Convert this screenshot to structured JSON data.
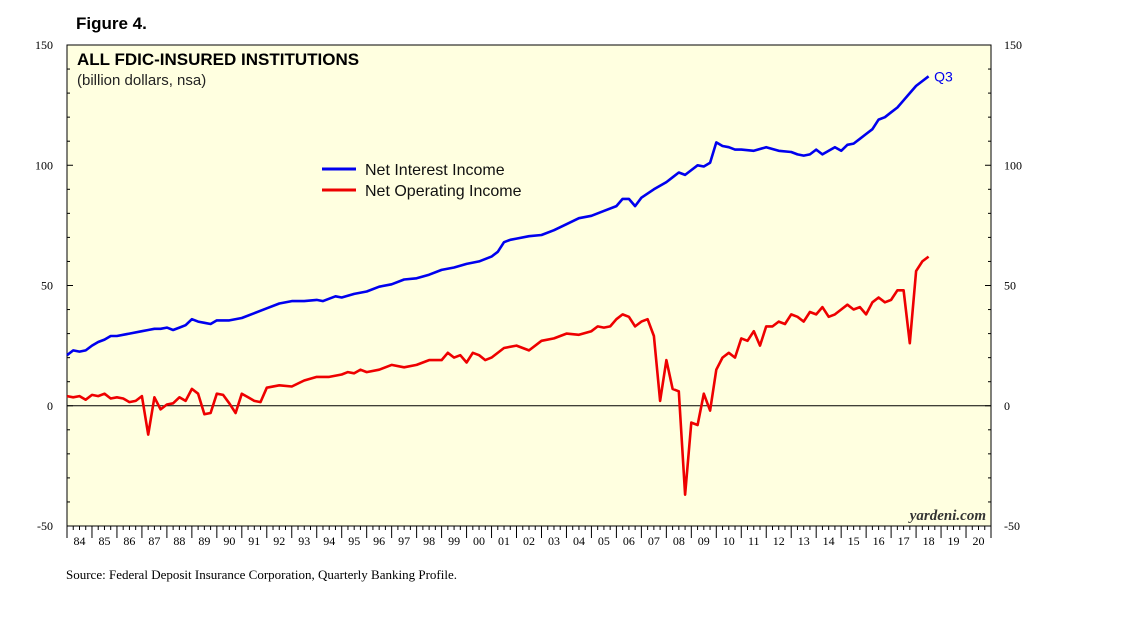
{
  "figure_label": "Figure 4.",
  "source": "Source: Federal Deposit Insurance Corporation, Quarterly Banking Profile.",
  "watermark": "yardeni.com",
  "colors": {
    "plot_bg": "#ffffe0",
    "series1": "#0000ee",
    "series2": "#ee0000",
    "zero_line": "#000000"
  },
  "chart_data": {
    "type": "line",
    "title": "ALL FDIC-INSURED INSTITUTIONS",
    "subtitle": "(billion dollars, nsa)",
    "ylim": [
      -50,
      150
    ],
    "yticks": [
      -50,
      0,
      50,
      100,
      150
    ],
    "ytick_labels": [
      "-50",
      "0",
      "50",
      "100",
      "150"
    ],
    "xlim": [
      1984,
      2021
    ],
    "x_tick_labels": [
      "84",
      "85",
      "86",
      "87",
      "88",
      "89",
      "90",
      "91",
      "92",
      "93",
      "94",
      "95",
      "96",
      "97",
      "98",
      "99",
      "00",
      "01",
      "02",
      "03",
      "04",
      "05",
      "06",
      "07",
      "08",
      "09",
      "10",
      "11",
      "12",
      "13",
      "14",
      "15",
      "16",
      "17",
      "18",
      "19",
      "20"
    ],
    "annotation": {
      "text": "Q3",
      "x": 2018.6,
      "y": 137
    },
    "legend": [
      "Net Interest Income",
      "Net Operating Income"
    ],
    "series": [
      {
        "name": "Net Interest Income",
        "x": [
          1984,
          1984.25,
          1984.5,
          1984.75,
          1985,
          1985.25,
          1985.5,
          1985.75,
          1986,
          1986.5,
          1987,
          1987.25,
          1987.5,
          1987.75,
          1988,
          1988.25,
          1988.5,
          1988.75,
          1989,
          1989.25,
          1989.5,
          1989.75,
          1990,
          1990.5,
          1991,
          1991.5,
          1992,
          1992.5,
          1993,
          1993.5,
          1994,
          1994.25,
          1994.5,
          1994.75,
          1995,
          1995.5,
          1996,
          1996.5,
          1997,
          1997.5,
          1998,
          1998.5,
          1999,
          1999.5,
          2000,
          2000.5,
          2001,
          2001.25,
          2001.5,
          2001.75,
          2002,
          2002.5,
          2003,
          2003.5,
          2004,
          2004.5,
          2005,
          2005.5,
          2006,
          2006.25,
          2006.5,
          2006.75,
          2007,
          2007.5,
          2008,
          2008.25,
          2008.5,
          2008.75,
          2009,
          2009.25,
          2009.5,
          2009.75,
          2010,
          2010.25,
          2010.5,
          2010.75,
          2011,
          2011.5,
          2012,
          2012.5,
          2013,
          2013.25,
          2013.5,
          2013.75,
          2014,
          2014.25,
          2014.5,
          2014.75,
          2015,
          2015.25,
          2015.5,
          2015.75,
          2016,
          2016.25,
          2016.5,
          2016.75,
          2017,
          2017.25,
          2017.5,
          2017.75,
          2018,
          2018.25,
          2018.5
        ],
        "values": [
          21,
          23,
          22.5,
          23,
          25,
          26.5,
          27.5,
          29,
          29,
          30,
          31,
          31.5,
          32,
          32,
          32.5,
          31.5,
          32.5,
          33.5,
          36,
          35,
          34.5,
          34,
          35.5,
          35.5,
          36.5,
          38.5,
          40.5,
          42.5,
          43.5,
          43.5,
          44,
          43.5,
          44.5,
          45.5,
          45,
          46.5,
          47.5,
          49.5,
          50.5,
          52.5,
          53,
          54.5,
          56.5,
          57.5,
          59,
          60,
          62,
          64,
          68,
          69,
          69.5,
          70.5,
          71,
          73,
          75.5,
          78,
          79,
          81,
          83,
          86,
          86,
          83,
          86.5,
          90,
          93,
          95,
          97,
          96,
          98,
          100,
          99.5,
          101,
          109.5,
          108,
          107.5,
          106.5,
          106.5,
          106,
          107.5,
          106,
          105.5,
          104.5,
          104,
          104.5,
          106.5,
          104.5,
          106,
          107.5,
          106,
          108.5,
          109,
          111,
          113,
          115,
          119,
          120,
          122,
          124,
          127,
          130,
          133,
          135,
          137
        ]
      },
      {
        "name": "Net Operating Income",
        "x": [
          1984,
          1984.25,
          1984.5,
          1984.75,
          1985,
          1985.25,
          1985.5,
          1985.75,
          1986,
          1986.25,
          1986.5,
          1986.75,
          1987,
          1987.25,
          1987.5,
          1987.75,
          1988,
          1988.25,
          1988.5,
          1988.75,
          1989,
          1989.25,
          1989.5,
          1989.75,
          1990,
          1990.25,
          1990.5,
          1990.75,
          1991,
          1991.25,
          1991.5,
          1991.75,
          1992,
          1992.5,
          1993,
          1993.5,
          1994,
          1994.5,
          1995,
          1995.25,
          1995.5,
          1995.75,
          1996,
          1996.5,
          1997,
          1997.5,
          1998,
          1998.5,
          1999,
          1999.25,
          1999.5,
          1999.75,
          2000,
          2000.25,
          2000.5,
          2000.75,
          2001,
          2001.5,
          2002,
          2002.5,
          2003,
          2003.5,
          2004,
          2004.5,
          2005,
          2005.25,
          2005.5,
          2005.75,
          2006,
          2006.25,
          2006.5,
          2006.75,
          2007,
          2007.25,
          2007.5,
          2007.75,
          2008,
          2008.25,
          2008.5,
          2008.75,
          2009,
          2009.25,
          2009.5,
          2009.75,
          2010,
          2010.25,
          2010.5,
          2010.75,
          2011,
          2011.25,
          2011.5,
          2011.75,
          2012,
          2012.25,
          2012.5,
          2012.75,
          2013,
          2013.25,
          2013.5,
          2013.75,
          2014,
          2014.25,
          2014.5,
          2014.75,
          2015,
          2015.25,
          2015.5,
          2015.75,
          2016,
          2016.25,
          2016.5,
          2016.75,
          2017,
          2017.25,
          2017.5,
          2017.75,
          2018,
          2018.25,
          2018.5
        ],
        "values": [
          4,
          3.5,
          4,
          2.5,
          4.5,
          4,
          5,
          3,
          3.5,
          3,
          1.5,
          2,
          4,
          -12,
          3.5,
          -1.5,
          0.5,
          1,
          3.5,
          2,
          7,
          5,
          -3.5,
          -3,
          5,
          4.5,
          1,
          -3,
          5,
          3.5,
          2,
          1.5,
          7.5,
          8.5,
          8,
          10.5,
          12,
          12,
          13,
          14,
          13.5,
          15,
          14,
          15,
          17,
          16,
          17,
          19,
          19,
          22,
          20,
          21,
          18,
          22,
          21,
          19,
          20,
          24,
          25,
          23,
          27,
          28,
          30,
          29.5,
          31,
          33,
          32.5,
          33,
          36,
          38,
          37,
          33,
          35,
          36,
          29,
          2,
          19,
          7,
          6,
          -37,
          -7,
          -8,
          5,
          -2,
          15,
          20,
          22,
          20,
          28,
          27,
          31,
          25,
          33,
          33,
          35,
          34,
          38,
          37,
          35,
          39,
          38,
          41,
          37,
          38,
          40,
          42,
          40,
          41,
          38,
          43,
          45,
          43,
          44,
          48,
          48,
          26,
          56,
          60,
          62
        ]
      }
    ]
  }
}
